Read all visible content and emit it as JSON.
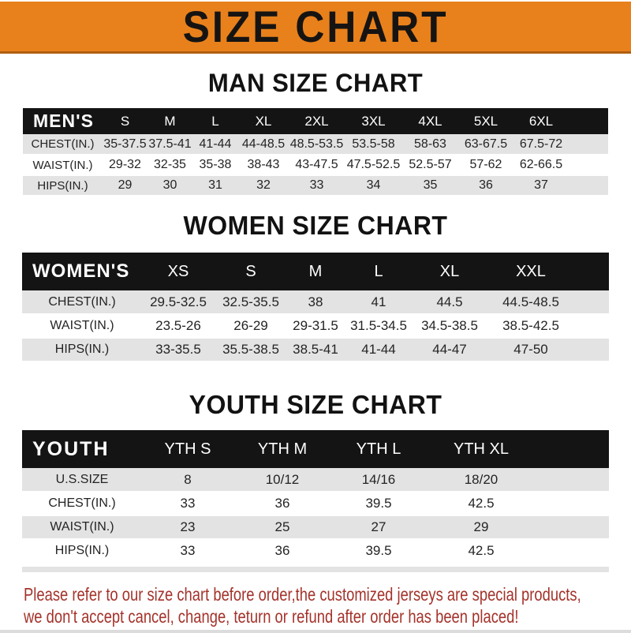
{
  "banner": {
    "title": "SIZE CHART"
  },
  "men_chart": {
    "heading": "MAN SIZE CHART",
    "table": {
      "corner": "MEN'S",
      "columns": [
        "S",
        "M",
        "L",
        "XL",
        "2XL",
        "3XL",
        "4XL",
        "5XL",
        "6XL"
      ],
      "rows": [
        {
          "label": "CHEST(IN.)",
          "values": [
            "35-37.5",
            "37.5-41",
            "41-44",
            "44-48.5",
            "48.5-53.5",
            "53.5-58",
            "58-63",
            "63-67.5",
            "67.5-72"
          ]
        },
        {
          "label": "WAIST(IN.)",
          "values": [
            "29-32",
            "32-35",
            "35-38",
            "38-43",
            "43-47.5",
            "47.5-52.5",
            "52.5-57",
            "57-62",
            "62-66.5"
          ]
        },
        {
          "label": "HIPS(IN.)",
          "values": [
            "29",
            "30",
            "31",
            "32",
            "33",
            "34",
            "35",
            "36",
            "37"
          ]
        }
      ]
    }
  },
  "women_chart": {
    "heading": "WOMEN SIZE CHART",
    "table": {
      "corner": "WOMEN'S",
      "columns": [
        "XS",
        "S",
        "M",
        "L",
        "XL",
        "XXL"
      ],
      "rows": [
        {
          "label": "CHEST(IN.)",
          "values": [
            "29.5-32.5",
            "32.5-35.5",
            "38",
            "41",
            "44.5",
            "44.5-48.5"
          ]
        },
        {
          "label": "WAIST(IN.)",
          "values": [
            "23.5-26",
            "26-29",
            "29-31.5",
            "31.5-34.5",
            "34.5-38.5",
            "38.5-42.5"
          ]
        },
        {
          "label": "HIPS(IN.)",
          "values": [
            "33-35.5",
            "35.5-38.5",
            "38.5-41",
            "41-44",
            "44-47",
            "47-50"
          ]
        }
      ]
    }
  },
  "youth_chart": {
    "heading": "YOUTH SIZE CHART",
    "table": {
      "corner": "YOUTH",
      "columns": [
        "YTH S",
        "YTH M",
        "YTH L",
        "YTH XL"
      ],
      "rows": [
        {
          "label": "U.S.SIZE",
          "values": [
            "8",
            "10/12",
            "14/16",
            "18/20"
          ]
        },
        {
          "label": "CHEST(IN.)",
          "values": [
            "33",
            "36",
            "39.5",
            "42.5"
          ]
        },
        {
          "label": "WAIST(IN.)",
          "values": [
            "23",
            "25",
            "27",
            "29"
          ]
        },
        {
          "label": "HIPS(IN.)",
          "values": [
            "33",
            "36",
            "39.5",
            "42.5"
          ]
        }
      ]
    }
  },
  "footer_note": {
    "line1": "Please refer to our size chart before order,the customized jerseys are special products,",
    "line2": "we don't accept cancel, change, teturn or refund after order has been placed!"
  },
  "colors": {
    "banner_orange": "#E8811B",
    "table_header_black": "#141414",
    "row_gray": "#E3E3E3",
    "note_red": "#A4332B"
  }
}
